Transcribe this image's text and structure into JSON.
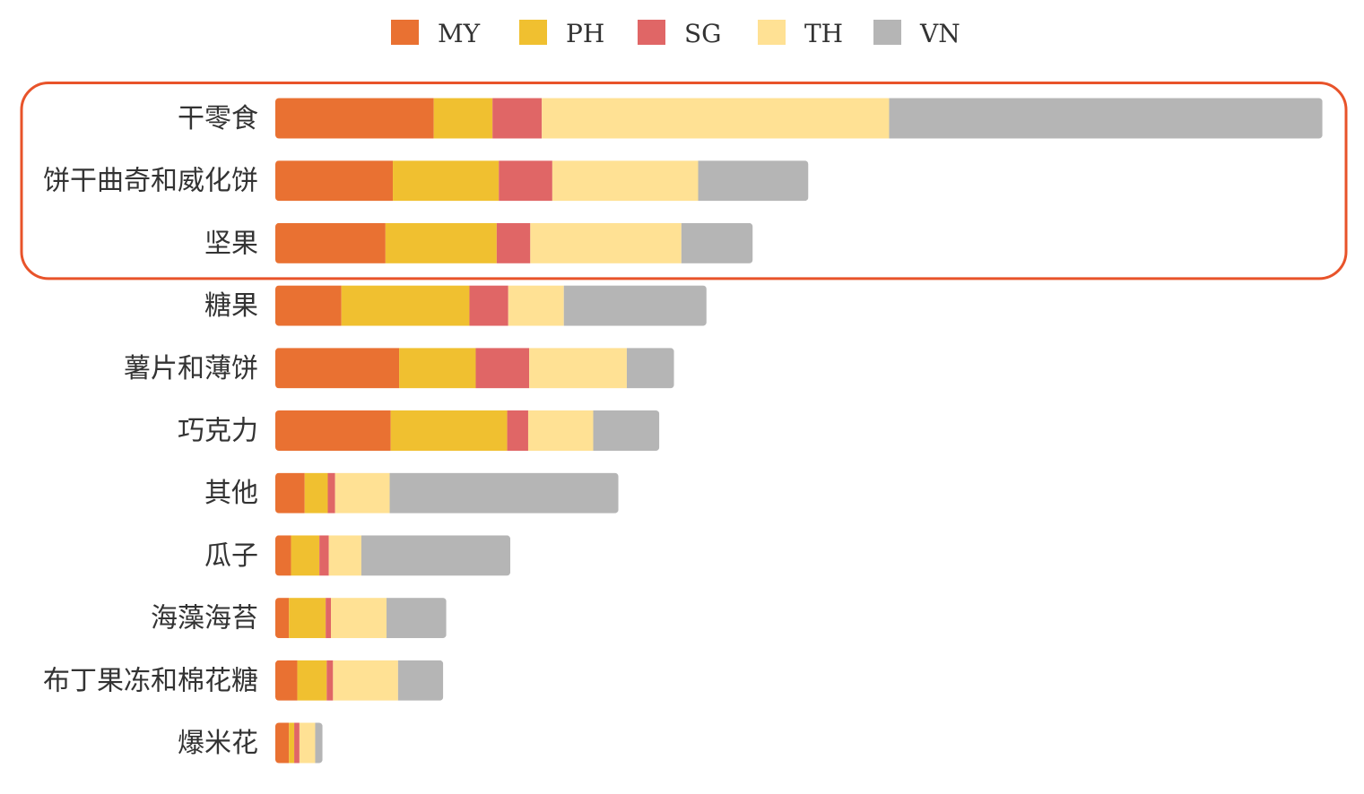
{
  "chart_data": {
    "type": "bar",
    "orientation": "horizontal",
    "stacked": true,
    "title": "",
    "xlabel": "",
    "ylabel": "",
    "xlim": [
      0,
      100
    ],
    "grid": false,
    "legend_position": "top-center",
    "categories": [
      "干零食",
      "饼干曲奇和威化饼",
      "坚果",
      "糖果",
      "薯片和薄饼",
      "巧克力",
      "其他",
      "瓜子",
      "海藻海苔",
      "布丁果冻和棉花糖",
      "爆米花"
    ],
    "series": [
      {
        "name": "MY",
        "color": "#E97132",
        "values": [
          15.1,
          11.2,
          10.5,
          6.3,
          11.8,
          11.0,
          2.8,
          1.5,
          1.3,
          2.1,
          1.3
        ]
      },
      {
        "name": "PH",
        "color": "#F0C030",
        "values": [
          5.6,
          10.1,
          10.6,
          12.2,
          7.3,
          11.1,
          2.2,
          2.7,
          3.5,
          2.8,
          0.5
        ]
      },
      {
        "name": "SG",
        "color": "#E06666",
        "values": [
          4.7,
          5.1,
          3.2,
          3.7,
          5.1,
          2.0,
          0.7,
          0.9,
          0.5,
          0.6,
          0.5
        ]
      },
      {
        "name": "TH",
        "color": "#FFE194",
        "values": [
          33.1,
          13.9,
          14.4,
          5.3,
          9.3,
          6.2,
          5.2,
          3.1,
          5.3,
          6.2,
          1.5
        ]
      },
      {
        "name": "VN",
        "color": "#B5B5B5",
        "values": [
          41.3,
          10.5,
          6.8,
          13.6,
          4.5,
          6.3,
          21.8,
          14.2,
          5.7,
          4.3,
          0.7
        ]
      }
    ],
    "highlight": {
      "categories": [
        "干零食",
        "饼干曲奇和威化饼",
        "坚果"
      ],
      "color": "#E8532A"
    }
  }
}
